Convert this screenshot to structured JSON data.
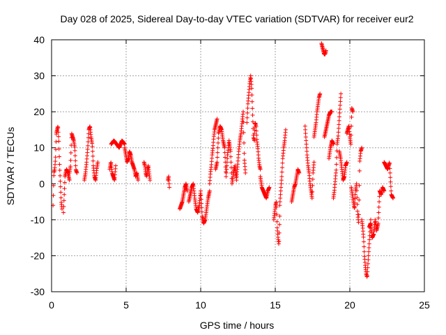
{
  "chart_data": {
    "type": "scatter",
    "title": "Day 028 of 2025, Sidereal Day-to-day VTEC variation (SDTVAR) for receiver eur2",
    "xlabel": "GPS time / hours",
    "ylabel": "SDTVAR / TECUs",
    "xlim": [
      0,
      25
    ],
    "ylim": [
      -30,
      40
    ],
    "xticks": [
      0,
      5,
      10,
      15,
      20,
      25
    ],
    "yticks": [
      -30,
      -20,
      -10,
      0,
      10,
      20,
      30,
      40
    ],
    "xtick_labels": [
      "0",
      "5",
      "10",
      "15",
      "20",
      "25"
    ],
    "ytick_labels": [
      "-30",
      "-20",
      "-10",
      "0",
      "10",
      "20",
      "30",
      "40"
    ],
    "grid": true,
    "marker": "+",
    "color": "#ff0000",
    "segments": [
      {
        "x0": 0.1,
        "x1": 0.7,
        "y": [
          -6,
          3,
          4,
          7,
          14,
          15,
          16,
          12,
          5,
          0,
          -5,
          -7
        ]
      },
      {
        "x0": 0.8,
        "x1": 1.2,
        "y": [
          -8,
          2,
          4,
          3,
          1
        ]
      },
      {
        "x0": 1.2,
        "x1": 1.7,
        "y": [
          3,
          5,
          14,
          13,
          12,
          10,
          4,
          3
        ]
      },
      {
        "x0": 2.2,
        "x1": 3.1,
        "y": [
          1,
          3,
          6,
          10,
          15,
          16,
          13,
          11,
          5,
          2,
          1,
          4,
          6
        ]
      },
      {
        "x0": 3.9,
        "x1": 4.3,
        "y": [
          4,
          6,
          3,
          2,
          1,
          5
        ]
      },
      {
        "x0": 4.0,
        "x1": 4.9,
        "y": [
          11,
          12,
          11,
          10,
          12,
          11
        ]
      },
      {
        "x0": 4.9,
        "x1": 5.8,
        "y": [
          10,
          8,
          6,
          7,
          9,
          8,
          6,
          5,
          4,
          2,
          3,
          1
        ]
      },
      {
        "x0": 6.2,
        "x1": 6.6,
        "y": [
          6,
          5,
          3,
          2,
          4,
          5,
          3,
          1
        ]
      },
      {
        "x0": 7.8,
        "x1": 7.9,
        "y": [
          1,
          2,
          -1
        ]
      },
      {
        "x0": 8.6,
        "x1": 9.1,
        "y": [
          -7,
          -6,
          -5,
          -3,
          -1,
          0,
          -2
        ]
      },
      {
        "x0": 9.2,
        "x1": 10.6,
        "y": [
          -5,
          -3,
          -1,
          0,
          -4,
          -7,
          -8,
          -6,
          -2,
          -9,
          -11,
          -10,
          -7,
          -4,
          -2
        ]
      },
      {
        "x0": 10.6,
        "x1": 11.1,
        "y": [
          0,
          3,
          5,
          8,
          10,
          13,
          15,
          16,
          17,
          18
        ]
      },
      {
        "x0": 11.0,
        "x1": 12.4,
        "y": [
          4,
          6,
          14,
          16,
          15,
          12,
          10,
          2,
          8,
          12,
          9,
          0,
          3,
          5,
          1
        ]
      },
      {
        "x0": 12.4,
        "x1": 13.0,
        "y": [
          2,
          5,
          9,
          12,
          14,
          17,
          20,
          7,
          3
        ]
      },
      {
        "x0": 13.1,
        "x1": 13.6,
        "y": [
          17,
          22,
          25,
          28,
          30,
          27,
          20,
          13,
          12
        ]
      },
      {
        "x0": 13.6,
        "x1": 14.0,
        "y": [
          14,
          17,
          16,
          12,
          10,
          7,
          5,
          4
        ]
      },
      {
        "x0": 14.0,
        "x1": 14.6,
        "y": [
          2,
          -1,
          -2,
          -3,
          -4,
          -2,
          -1
        ]
      },
      {
        "x0": 14.9,
        "x1": 15.3,
        "y": [
          -10,
          -8,
          -6,
          -5,
          -12,
          -15,
          -17,
          -9
        ]
      },
      {
        "x0": 15.3,
        "x1": 15.7,
        "y": [
          -6,
          -2,
          2,
          7,
          10,
          12,
          15
        ]
      },
      {
        "x0": 16.1,
        "x1": 16.6,
        "y": [
          -5,
          -3,
          -1,
          0,
          2,
          4,
          3
        ]
      },
      {
        "x0": 17.0,
        "x1": 17.6,
        "y": [
          16,
          12,
          8,
          5,
          3,
          0,
          -2,
          -4,
          3,
          6
        ]
      },
      {
        "x0": 17.6,
        "x1": 18.0,
        "y": [
          13,
          15,
          17,
          20,
          22,
          24,
          25
        ]
      },
      {
        "x0": 18.1,
        "x1": 18.4,
        "y": [
          39,
          38,
          37,
          36,
          36,
          37
        ]
      },
      {
        "x0": 18.3,
        "x1": 18.8,
        "y": [
          13,
          15,
          17,
          19,
          20,
          20
        ]
      },
      {
        "x0": 18.6,
        "x1": 18.9,
        "y": [
          7,
          10,
          12,
          11
        ]
      },
      {
        "x0": 18.9,
        "x1": 19.4,
        "y": [
          -4,
          -2,
          1,
          4,
          11,
          13,
          17,
          21,
          25
        ]
      },
      {
        "x0": 19.3,
        "x1": 19.8,
        "y": [
          9,
          7,
          4,
          1,
          2,
          5,
          6
        ]
      },
      {
        "x0": 19.8,
        "x1": 20.2,
        "y": [
          14,
          15,
          16,
          13,
          11,
          21,
          20
        ]
      },
      {
        "x0": 20.1,
        "x1": 20.8,
        "y": [
          -1,
          -3,
          -5,
          -7,
          -2,
          0,
          -8,
          -11,
          6,
          9,
          10
        ]
      },
      {
        "x0": 20.8,
        "x1": 21.4,
        "y": [
          -10,
          -12,
          -15,
          -20,
          -23,
          -25,
          -26,
          -22,
          -18,
          -14,
          -10
        ]
      },
      {
        "x0": 21.3,
        "x1": 22.3,
        "y": [
          -12,
          -11,
          -15,
          -14,
          -10,
          -13,
          -11,
          -2,
          -3,
          -1,
          -2
        ]
      },
      {
        "x0": 22.3,
        "x1": 22.9,
        "y": [
          6,
          5,
          4,
          6,
          -3,
          -4
        ]
      }
    ]
  }
}
